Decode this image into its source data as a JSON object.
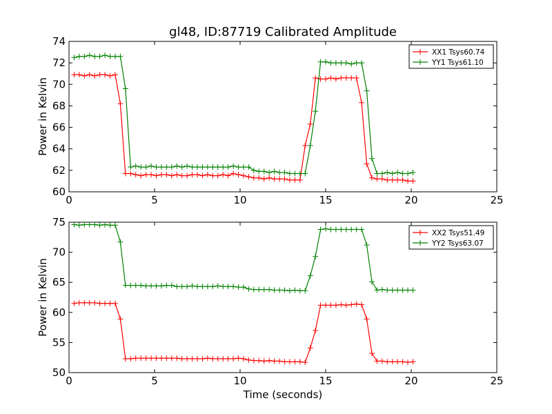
{
  "figure": {
    "title": "gl48, ID:87719 Calibrated Amplitude",
    "xlabel": "Time (seconds)"
  },
  "chart_data": [
    {
      "type": "line",
      "title": "gl48, ID:87719 Calibrated Amplitude",
      "xlabel": "",
      "ylabel": "Power in Kelvin",
      "xlim": [
        0,
        25
      ],
      "ylim": [
        60,
        74
      ],
      "xticks": [
        0,
        5,
        10,
        15,
        20,
        25
      ],
      "yticks": [
        60,
        62,
        64,
        66,
        68,
        70,
        72,
        74
      ],
      "grid": false,
      "legend_position": "top-right",
      "x": [
        0.3,
        0.6,
        0.9,
        1.2,
        1.5,
        1.8,
        2.1,
        2.4,
        2.7,
        3.0,
        3.3,
        3.6,
        3.9,
        4.2,
        4.5,
        4.8,
        5.1,
        5.4,
        5.7,
        6.0,
        6.3,
        6.6,
        6.9,
        7.2,
        7.5,
        7.8,
        8.1,
        8.4,
        8.7,
        9.0,
        9.3,
        9.6,
        9.9,
        10.2,
        10.5,
        10.8,
        11.1,
        11.4,
        11.7,
        12.0,
        12.3,
        12.6,
        12.9,
        13.2,
        13.5,
        13.8,
        14.1,
        14.4,
        14.7,
        15.0,
        15.3,
        15.6,
        15.9,
        16.2,
        16.5,
        16.8,
        17.1,
        17.4,
        17.7,
        18.0,
        18.3,
        18.6,
        18.9,
        19.2,
        19.5,
        19.8,
        20.1
      ],
      "series": [
        {
          "name": "XX1 Tsys60.74",
          "color": "#ff0000",
          "values": [
            70.9,
            70.9,
            70.8,
            70.9,
            70.8,
            70.9,
            70.9,
            70.8,
            70.9,
            68.2,
            61.7,
            61.7,
            61.6,
            61.5,
            61.6,
            61.6,
            61.5,
            61.6,
            61.6,
            61.5,
            61.6,
            61.5,
            61.5,
            61.6,
            61.6,
            61.5,
            61.6,
            61.5,
            61.5,
            61.6,
            61.5,
            61.7,
            61.6,
            61.5,
            61.4,
            61.3,
            61.3,
            61.2,
            61.3,
            61.2,
            61.2,
            61.2,
            61.1,
            61.1,
            61.1,
            64.3,
            66.3,
            70.6,
            70.5,
            70.5,
            70.6,
            70.5,
            70.6,
            70.6,
            70.6,
            70.6,
            68.3,
            62.6,
            61.3,
            61.2,
            61.2,
            61.1,
            61.1,
            61.1,
            61.1,
            61.0,
            61.0
          ]
        },
        {
          "name": "YY1 Tsys61.10",
          "color": "#008000",
          "values": [
            72.5,
            72.6,
            72.6,
            72.7,
            72.6,
            72.6,
            72.7,
            72.6,
            72.6,
            72.6,
            69.6,
            62.3,
            62.4,
            62.3,
            62.3,
            62.4,
            62.3,
            62.3,
            62.3,
            62.3,
            62.4,
            62.3,
            62.4,
            62.3,
            62.3,
            62.3,
            62.3,
            62.3,
            62.3,
            62.3,
            62.3,
            62.4,
            62.3,
            62.3,
            62.3,
            62.0,
            61.9,
            61.9,
            61.8,
            61.9,
            61.8,
            61.8,
            61.7,
            61.7,
            61.7,
            61.7,
            64.3,
            67.5,
            72.1,
            72.1,
            72.0,
            72.0,
            72.0,
            72.0,
            71.9,
            72.0,
            72.0,
            69.4,
            63.1,
            61.7,
            61.7,
            61.8,
            61.7,
            61.8,
            61.7,
            61.7,
            61.8
          ]
        }
      ]
    },
    {
      "type": "line",
      "title": "",
      "xlabel": "Time (seconds)",
      "ylabel": "Power in Kelvin",
      "xlim": [
        0,
        25
      ],
      "ylim": [
        50,
        75
      ],
      "xticks": [
        0,
        5,
        10,
        15,
        20,
        25
      ],
      "yticks": [
        50,
        55,
        60,
        65,
        70,
        75
      ],
      "grid": false,
      "legend_position": "top-right",
      "x": [
        0.3,
        0.6,
        0.9,
        1.2,
        1.5,
        1.8,
        2.1,
        2.4,
        2.7,
        3.0,
        3.3,
        3.6,
        3.9,
        4.2,
        4.5,
        4.8,
        5.1,
        5.4,
        5.7,
        6.0,
        6.3,
        6.6,
        6.9,
        7.2,
        7.5,
        7.8,
        8.1,
        8.4,
        8.7,
        9.0,
        9.3,
        9.6,
        9.9,
        10.2,
        10.5,
        10.8,
        11.1,
        11.4,
        11.7,
        12.0,
        12.3,
        12.6,
        12.9,
        13.2,
        13.5,
        13.8,
        14.1,
        14.4,
        14.7,
        15.0,
        15.3,
        15.6,
        15.9,
        16.2,
        16.5,
        16.8,
        17.1,
        17.4,
        17.7,
        18.0,
        18.3,
        18.6,
        18.9,
        19.2,
        19.5,
        19.8,
        20.1
      ],
      "series": [
        {
          "name": "XX2 Tsys51.49",
          "color": "#ff0000",
          "values": [
            61.5,
            61.6,
            61.6,
            61.6,
            61.6,
            61.5,
            61.5,
            61.5,
            61.5,
            58.9,
            52.3,
            52.3,
            52.4,
            52.4,
            52.4,
            52.4,
            52.4,
            52.4,
            52.4,
            52.4,
            52.4,
            52.3,
            52.3,
            52.3,
            52.3,
            52.3,
            52.4,
            52.3,
            52.3,
            52.3,
            52.3,
            52.3,
            52.4,
            52.3,
            52.1,
            52.0,
            52.0,
            51.9,
            52.0,
            51.9,
            51.9,
            51.8,
            51.8,
            51.8,
            51.8,
            51.7,
            54.1,
            57.0,
            61.2,
            61.2,
            61.2,
            61.2,
            61.3,
            61.2,
            61.3,
            61.4,
            61.3,
            58.9,
            53.2,
            51.9,
            51.9,
            51.8,
            51.8,
            51.8,
            51.8,
            51.7,
            51.8
          ]
        },
        {
          "name": "YY2 Tsys63.07",
          "color": "#008000",
          "values": [
            74.6,
            74.5,
            74.6,
            74.6,
            74.6,
            74.5,
            74.6,
            74.5,
            74.5,
            71.7,
            64.5,
            64.5,
            64.5,
            64.5,
            64.4,
            64.4,
            64.4,
            64.4,
            64.5,
            64.5,
            64.3,
            64.3,
            64.3,
            64.4,
            64.3,
            64.3,
            64.3,
            64.3,
            64.4,
            64.3,
            64.3,
            64.3,
            64.2,
            64.2,
            63.9,
            63.8,
            63.8,
            63.8,
            63.8,
            63.7,
            63.7,
            63.7,
            63.6,
            63.7,
            63.6,
            63.6,
            66.1,
            69.3,
            73.8,
            73.9,
            73.8,
            73.8,
            73.8,
            73.8,
            73.8,
            73.8,
            73.8,
            71.2,
            65.1,
            63.7,
            63.8,
            63.7,
            63.7,
            63.7,
            63.7,
            63.7,
            63.7
          ]
        }
      ]
    }
  ]
}
